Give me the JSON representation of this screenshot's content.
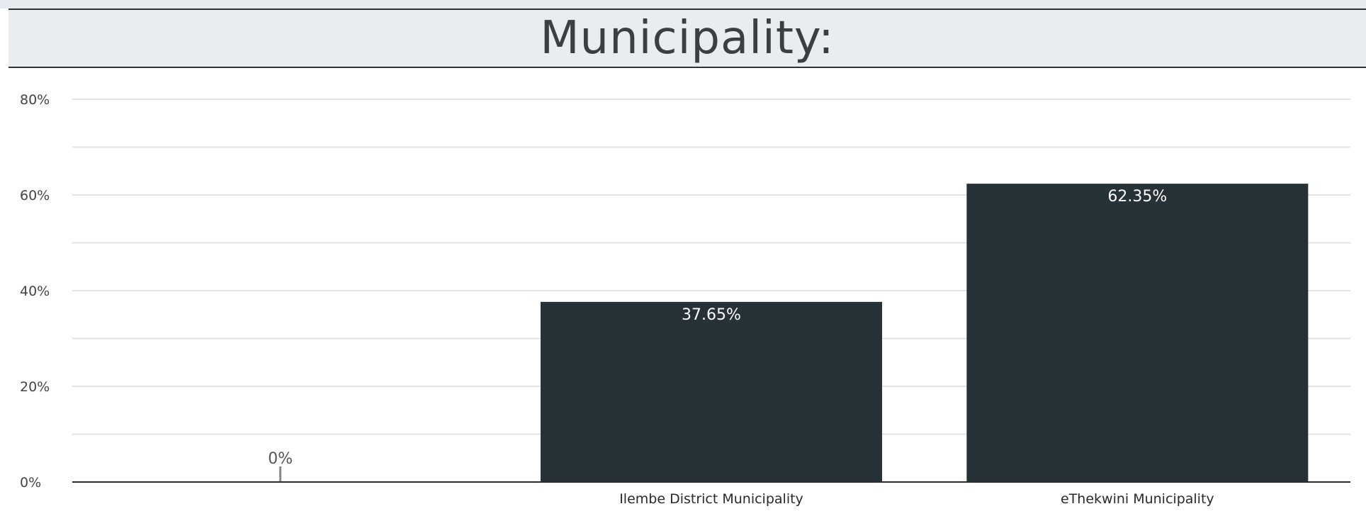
{
  "title": "Municipality:",
  "colors": {
    "bar": "#263238",
    "grid": "#e3e3e3",
    "axis": "#2b2b2b",
    "tick_text": "#444444",
    "bar_label_inside": "#ffffff",
    "bar_label_outside": "#555555"
  },
  "chart_data": {
    "type": "bar",
    "title": "Municipality:",
    "categories": [
      "",
      "Ilembe District Municipality",
      "eThekwini Municipality"
    ],
    "values": [
      0,
      37.65,
      62.35
    ],
    "value_labels": [
      "0%",
      "37.65%",
      "62.35%"
    ],
    "ylim": [
      0,
      80
    ],
    "yticks": [
      0,
      20,
      40,
      60,
      80
    ],
    "ytick_labels": [
      "0%",
      "20%",
      "40%",
      "60%",
      "80%"
    ],
    "grid": true,
    "xlabel": "",
    "ylabel": ""
  }
}
